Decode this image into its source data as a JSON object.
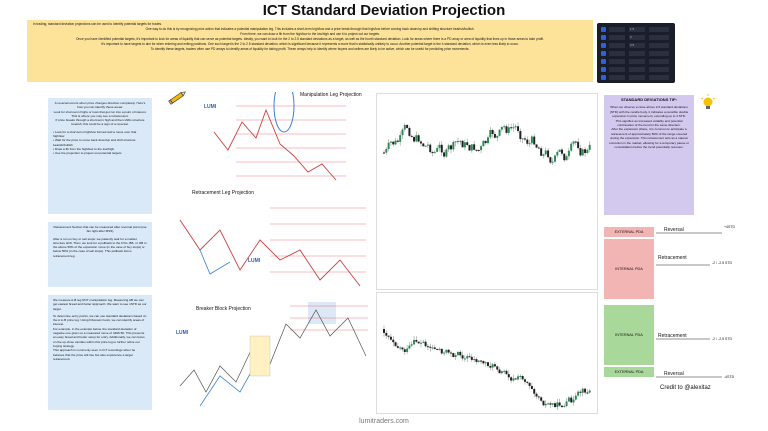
{
  "title": "ICT Standard Deviation Projection",
  "intro": [
    "In trading, standard deviation projections can be used to identify potential targets for trades.",
    "One way to do this is by recognizing price action that indicates a potential manipulation leg. This includes a short-term high/low and a price break through that high/low before coming back down/up and shifting structure bearish/bullish.",
    "From there, we can draw a fib from the high/low to the low/high and use it to project out our targets.",
    "Once you have identified potential targets, it's important to look for areas of liquidity that can serve as potential targets. Ideally, you want to look for the 2 to 2.5 standard deviations as a target, as well as the fourth standard deviation. Look for areas where there is a PD array or area of liquidity that lines up in those areas to take profit.",
    "It's important to have targets to aim for when entering and exiting positions. One such target is the 2 to 2.5 standard deviation, which is significant because it represents a move that is statistically unlikely to occur. Another potential target is the 4 standard deviation, which is even less likely to occur.",
    "To identify these targets, traders often use PD arrays to identify areas of liquidity for taking profit. These arrays help to identify where buyers and sellers are likely to be active, which can be useful for predicting price movements."
  ],
  "settings": {
    "rows": [
      "1.5",
      "2",
      "2.5",
      "",
      "",
      "",
      ""
    ]
  },
  "left_box_1": [
    "A reversal occurs when price changes direction completely. Here's how you can identify these areas:",
    "Look for short-term highs or lows that get run into a point of interest. This is where you may see a retracement.",
    "If price breaks through a short-term high and then shifts structure bearish, this could be a sign of a reversal.",
    "• Look for a short-term high/low formed and a move over that high/low",
    "• Wait for the price to come back down/up and shift structure bearish/bullish",
    "• Draw a fib from the high/low to the low/high.",
    "• Use the projection to project out potential targets"
  ],
  "left_box_2": [
    "Retracement Section that can be measured after reversal point (use fan right after MSS)",
    "After a run on buy or sell stops: we patiently wait for a market structure shift. Then: we look for a pullback to the FVG, BB, or OB in the above 50% of the expansion move (in the case of buy stops) or below 50% (in the case of sell stops). This pullback forms retracement leg."
  ],
  "left_box_3": [
    "We measure A-B leg NOT manipulation leg. Measuring AB we can get easiest bread and butter approach. We want to see 1STD as our target.",
    "To determine entry points, we can use standard deviations based on the A to B price leg. Using Fibonacci tools, we can identify areas of interest.",
    "For example, in the example below, the standard deviation of negative one gives us a measured move of 4496.50. This presents an easy bread and butter setup for entry. Additionally, we can focus on the up-close candles within this price leg to further refine our buying strategy.",
    "This approach is commonly seen in ICT recordings when he believes that the price will rise but also experience a larger retracement."
  ],
  "chart_labels": {
    "manipulation": "Manipulation Leg Projection",
    "retracement": "Retracement Leg Projection",
    "breaker": "Breaker Block Projection",
    "lumi": "LUMI"
  },
  "tip": {
    "header": "STANDARD DEVIATIONS TIP:",
    "body": [
      "When we observe a close above 2.5 standard deviations (STD) with the candle body, it indicates a possible double expansion in price movement, extending up to 4 STD. This signifies an increased volatility and potential continuation of the trend in the same direction.",
      "After the expansion phase, it is common to anticipate a retracement of approximately 50% of the range covered during the expansion. This retracement acts as a natural correction in the market, allowing for a temporary pause or consolidation before the trend potentially resumes."
    ]
  },
  "pda": {
    "external": "EXTERNAL PDA",
    "internal": "INTERNAL PDA",
    "reversal": "Reversal",
    "retracement": "Retracement",
    "std_top": "+4STD",
    "std_mid": "-2 / -2.5 STD",
    "std_bot": "-4STD"
  },
  "credit": "Credit to @alexitaz",
  "footer": "lumitraders.com"
}
